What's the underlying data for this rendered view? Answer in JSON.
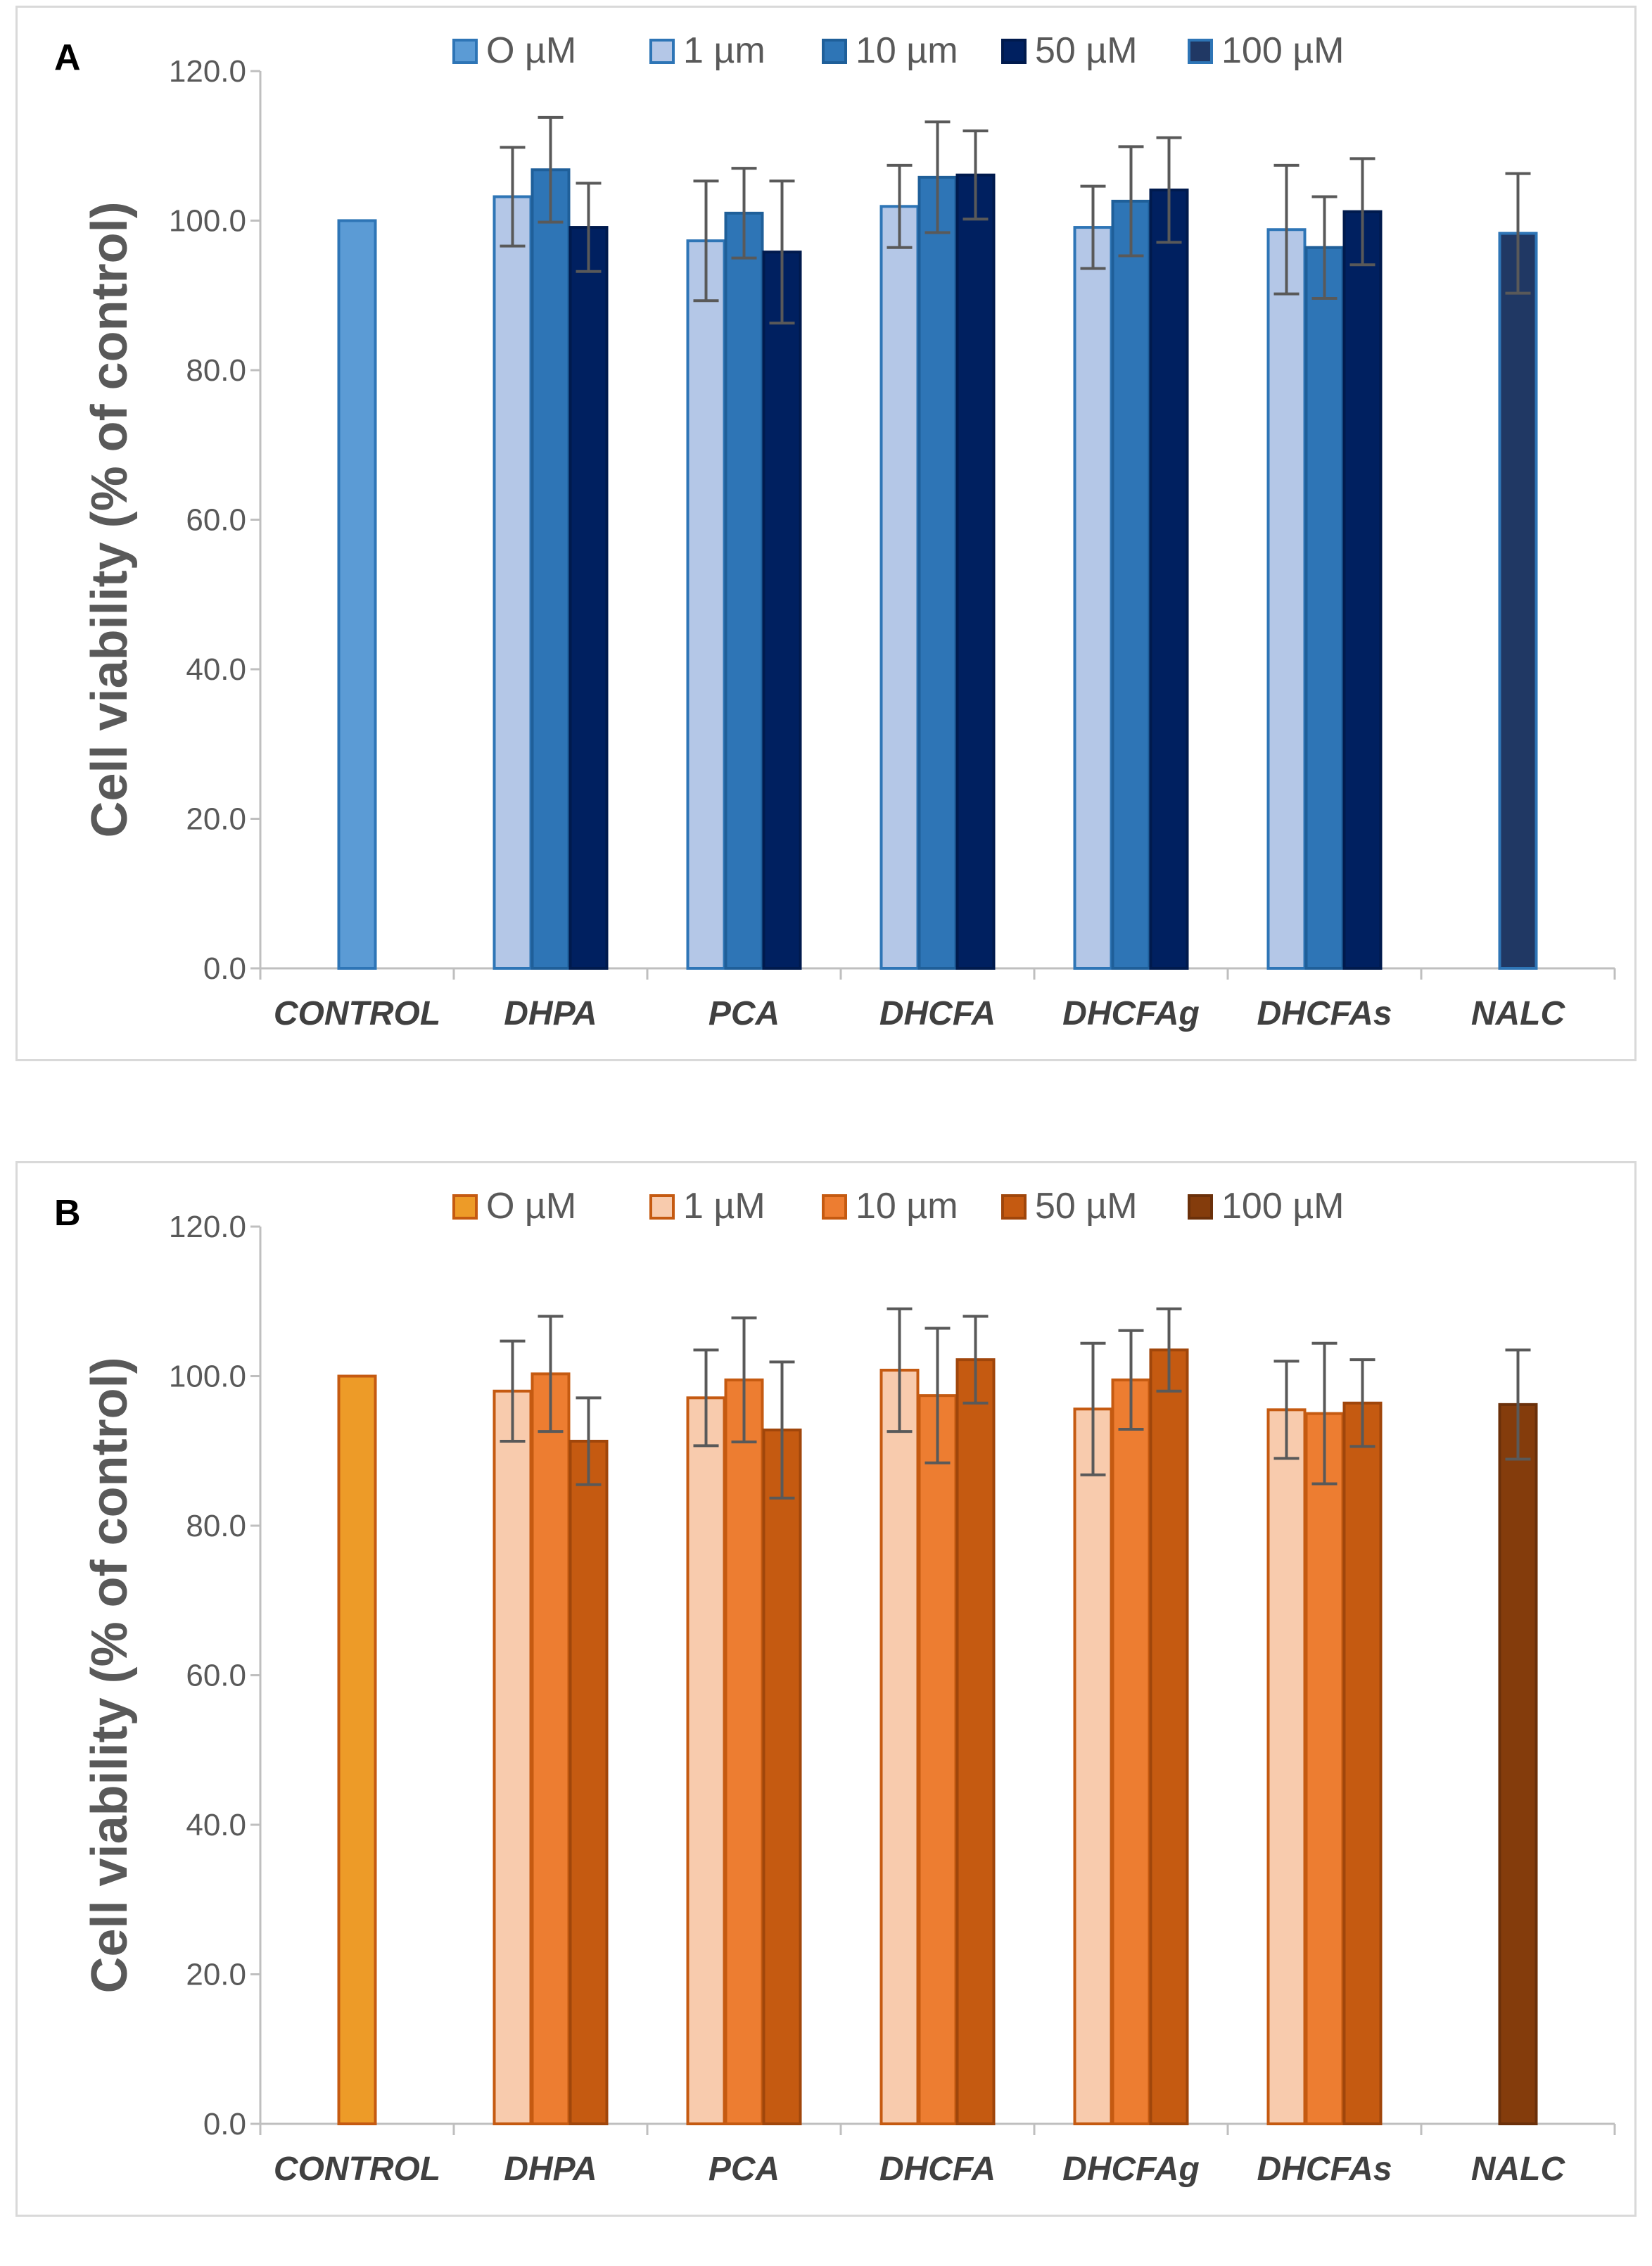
{
  "chart_data": [
    {
      "type": "bar",
      "panel_label": "A",
      "title": "",
      "xlabel": "",
      "ylabel": "Cell viability (% of control)",
      "ylim": [
        0,
        120
      ],
      "y_ticks": [
        "0.0",
        "20.0",
        "40.0",
        "60.0",
        "80.0",
        "100.0",
        "120.0"
      ],
      "categories": [
        "CONTROL",
        "DHPA",
        "PCA",
        "DHCFA",
        "DHCFAg",
        "DHCFAs",
        "NALC"
      ],
      "legend_position": "top",
      "grid": false,
      "series": [
        {
          "name": "O µM",
          "color": "#5b9bd5",
          "edge": "#2e75b6",
          "values": [
            100.0,
            null,
            null,
            null,
            null,
            null,
            null
          ],
          "errors": [
            null,
            null,
            null,
            null,
            null,
            null,
            null
          ]
        },
        {
          "name": "1  µm",
          "color": "#b4c7e7",
          "edge": "#2e75b6",
          "values": [
            null,
            103.2,
            97.3,
            101.9,
            99.1,
            98.8,
            null
          ],
          "errors": [
            null,
            6.6,
            8.0,
            5.5,
            5.5,
            8.6,
            null
          ]
        },
        {
          "name": "10  µm",
          "color": "#2e75b6",
          "edge": "#1f5f99",
          "values": [
            null,
            106.8,
            101.0,
            105.8,
            102.6,
            96.4,
            null
          ],
          "errors": [
            null,
            7.0,
            6.0,
            7.4,
            7.3,
            6.8,
            null
          ]
        },
        {
          "name": "50  µM",
          "color": "#002060",
          "edge": "#001a4d",
          "values": [
            null,
            99.1,
            95.8,
            106.1,
            104.1,
            101.2,
            null
          ],
          "errors": [
            null,
            5.9,
            9.5,
            5.9,
            7.0,
            7.1,
            null
          ]
        },
        {
          "name": "100  µM",
          "color": "#203864",
          "edge": "#2e75b6",
          "values": [
            null,
            null,
            null,
            null,
            null,
            null,
            98.3
          ],
          "errors": [
            null,
            null,
            null,
            null,
            null,
            null,
            8.0
          ]
        }
      ]
    },
    {
      "type": "bar",
      "panel_label": "B",
      "title": "",
      "xlabel": "",
      "ylabel": "Cell viability (% of control)",
      "ylim": [
        0,
        120
      ],
      "y_ticks": [
        "0.0",
        "20.0",
        "40.0",
        "60.0",
        "80.0",
        "100.0",
        "120.0"
      ],
      "categories": [
        "CONTROL",
        "DHPA",
        "PCA",
        "DHCFA",
        "DHCFAg",
        "DHCFAs",
        "NALC"
      ],
      "legend_position": "top",
      "grid": false,
      "series": [
        {
          "name": "O µM",
          "color": "#ed9b28",
          "edge": "#c55a11",
          "values": [
            100.0,
            null,
            null,
            null,
            null,
            null,
            null
          ],
          "errors": [
            null,
            null,
            null,
            null,
            null,
            null,
            null
          ]
        },
        {
          "name": "1 µM",
          "color": "#f8cbad",
          "edge": "#c55a11",
          "values": [
            null,
            98.0,
            97.1,
            100.8,
            95.6,
            95.5,
            null
          ],
          "errors": [
            null,
            6.7,
            6.4,
            8.2,
            8.8,
            6.5,
            null
          ]
        },
        {
          "name": "10  µm",
          "color": "#ed7d31",
          "edge": "#c55a11",
          "values": [
            null,
            100.3,
            99.5,
            97.4,
            99.5,
            95.0,
            null
          ],
          "errors": [
            null,
            7.7,
            8.3,
            9.0,
            6.6,
            9.4,
            null
          ]
        },
        {
          "name": "50  µM",
          "color": "#c55a11",
          "edge": "#a0460b",
          "values": [
            null,
            91.3,
            92.8,
            102.2,
            103.5,
            96.4,
            null
          ],
          "errors": [
            null,
            5.8,
            9.1,
            5.8,
            5.5,
            5.8,
            null
          ]
        },
        {
          "name": "100  µM",
          "color": "#843c0c",
          "edge": "#6b300a",
          "values": [
            null,
            null,
            null,
            null,
            null,
            null,
            96.2
          ],
          "errors": [
            null,
            null,
            null,
            null,
            null,
            null,
            7.3
          ]
        }
      ]
    }
  ]
}
